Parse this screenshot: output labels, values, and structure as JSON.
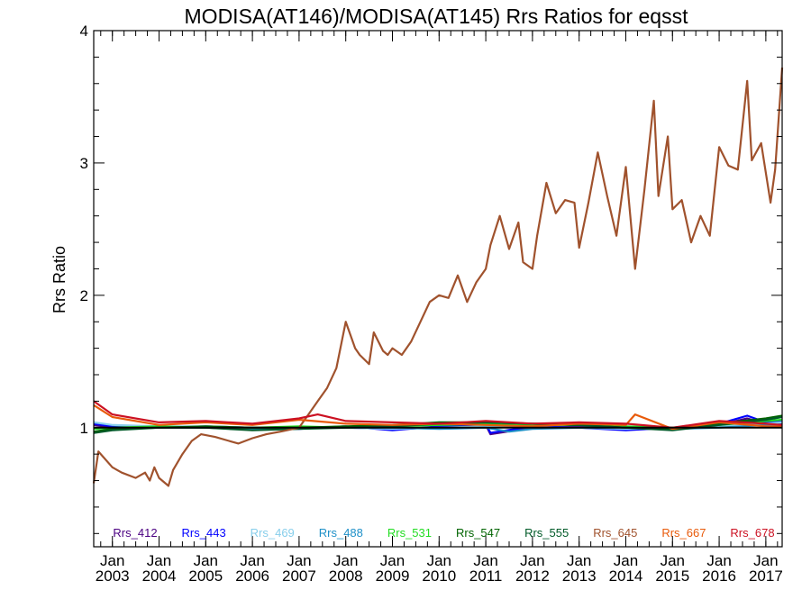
{
  "chart_data": {
    "type": "line",
    "title": "MODISA(AT146)/MODISA(AT145)  Rrs Ratios for eqsst",
    "xlabel": "",
    "ylabel": "Rrs Ratio",
    "xlim": [
      2002.6,
      2017.35
    ],
    "ylim": [
      0.1,
      4.0
    ],
    "yticks": [
      1,
      2,
      3,
      4
    ],
    "xticks": [
      {
        "month": "Jan",
        "year": "2003",
        "x": 2003.0
      },
      {
        "month": "Jan",
        "year": "2004",
        "x": 2004.0
      },
      {
        "month": "Jan",
        "year": "2005",
        "x": 2005.0
      },
      {
        "month": "Jan",
        "year": "2006",
        "x": 2006.0
      },
      {
        "month": "Jan",
        "year": "2007",
        "x": 2007.0
      },
      {
        "month": "Jan",
        "year": "2008",
        "x": 2008.0
      },
      {
        "month": "Jan",
        "year": "2009",
        "x": 2009.0
      },
      {
        "month": "Jan",
        "year": "2010",
        "x": 2010.0
      },
      {
        "month": "Jan",
        "year": "2011",
        "x": 2011.0
      },
      {
        "month": "Jan",
        "year": "2012",
        "x": 2012.0
      },
      {
        "month": "Jan",
        "year": "2013",
        "x": 2013.0
      },
      {
        "month": "Jan",
        "year": "2014",
        "x": 2014.0
      },
      {
        "month": "Jan",
        "year": "2015",
        "x": 2015.0
      },
      {
        "month": "Jan",
        "year": "2016",
        "x": 2016.0
      },
      {
        "month": "Jan",
        "year": "2017",
        "x": 2017.0
      }
    ],
    "grid": false,
    "legend_position": "bottom",
    "series": [
      {
        "name": "Rrs_412",
        "color": "#4b0082",
        "x": [
          2002.6,
          2003.0,
          2004.0,
          2005.0,
          2006.0,
          2007.0,
          2008.0,
          2009.0,
          2010.0,
          2011.0,
          2011.1,
          2012.0,
          2013.0,
          2014.0,
          2015.0,
          2016.0,
          2016.6,
          2017.0,
          2017.35
        ],
        "y": [
          1.02,
          1.0,
          1.01,
          1.0,
          0.99,
          1.0,
          1.0,
          0.99,
          1.0,
          1.02,
          0.95,
          1.0,
          1.01,
          1.0,
          0.99,
          1.02,
          1.07,
          1.03,
          1.03
        ]
      },
      {
        "name": "Rrs_443",
        "color": "#0000ff",
        "x": [
          2002.6,
          2003.0,
          2004.0,
          2005.0,
          2006.0,
          2007.0,
          2008.0,
          2009.0,
          2010.0,
          2011.0,
          2011.1,
          2012.0,
          2013.0,
          2014.0,
          2015.0,
          2016.0,
          2016.6,
          2017.0,
          2017.35
        ],
        "y": [
          1.03,
          1.01,
          1.0,
          1.01,
          1.0,
          0.99,
          1.01,
          0.98,
          1.01,
          1.03,
          0.96,
          1.01,
          1.0,
          0.98,
          1.0,
          1.03,
          1.09,
          1.04,
          1.05
        ]
      },
      {
        "name": "Rrs_469",
        "color": "#87ceeb",
        "x": [
          2002.6,
          2003.0,
          2004.0,
          2005.0,
          2006.0,
          2007.0,
          2008.0,
          2009.0,
          2010.0,
          2011.0,
          2012.0,
          2013.0,
          2014.0,
          2015.0,
          2016.0,
          2017.0,
          2017.35
        ],
        "y": [
          1.04,
          1.02,
          1.01,
          1.01,
          1.0,
          1.0,
          1.0,
          0.99,
          1.0,
          1.01,
          1.0,
          1.0,
          0.99,
          1.0,
          1.01,
          1.03,
          1.04
        ]
      },
      {
        "name": "Rrs_488",
        "color": "#1e90c8",
        "x": [
          2002.6,
          2003.0,
          2004.0,
          2005.0,
          2006.0,
          2007.0,
          2008.0,
          2009.0,
          2010.0,
          2011.0,
          2011.5,
          2012.0,
          2013.0,
          2014.0,
          2015.0,
          2016.0,
          2017.0,
          2017.35
        ],
        "y": [
          1.0,
          0.99,
          1.0,
          1.0,
          0.99,
          1.0,
          1.0,
          1.0,
          0.99,
          1.0,
          0.97,
          0.99,
          1.0,
          1.0,
          0.99,
          1.0,
          1.02,
          1.02
        ]
      },
      {
        "name": "Rrs_531",
        "color": "#22dd22",
        "x": [
          2002.6,
          2003.0,
          2004.0,
          2005.0,
          2006.0,
          2007.0,
          2008.0,
          2009.0,
          2010.0,
          2011.0,
          2012.0,
          2013.0,
          2014.0,
          2015.0,
          2016.0,
          2017.0,
          2017.35
        ],
        "y": [
          0.99,
          1.0,
          1.01,
          1.0,
          1.0,
          1.01,
          1.0,
          1.01,
          1.02,
          1.03,
          1.02,
          1.02,
          1.01,
          1.0,
          1.02,
          1.05,
          1.06
        ]
      },
      {
        "name": "Rrs_547",
        "color": "#006400",
        "x": [
          2002.6,
          2003.0,
          2004.0,
          2005.0,
          2006.0,
          2007.0,
          2008.0,
          2009.0,
          2010.0,
          2011.0,
          2012.0,
          2013.0,
          2014.0,
          2015.0,
          2016.0,
          2017.0,
          2017.35
        ],
        "y": [
          0.97,
          0.99,
          1.0,
          1.01,
          1.0,
          1.0,
          1.01,
          1.02,
          1.04,
          1.04,
          1.03,
          1.02,
          1.0,
          0.99,
          1.03,
          1.07,
          1.09
        ]
      },
      {
        "name": "Rrs_555",
        "color": "#005a28",
        "x": [
          2002.6,
          2003.0,
          2004.0,
          2005.0,
          2006.0,
          2007.0,
          2008.0,
          2009.0,
          2010.0,
          2011.0,
          2012.0,
          2013.0,
          2014.0,
          2015.0,
          2016.0,
          2017.0,
          2017.35
        ],
        "y": [
          0.96,
          0.98,
          1.0,
          1.0,
          0.98,
          0.99,
          1.0,
          1.01,
          1.03,
          1.04,
          1.03,
          1.02,
          1.0,
          0.98,
          1.02,
          1.06,
          1.08
        ]
      },
      {
        "name": "Rrs_645",
        "color": "#a0522d",
        "x": [
          2002.6,
          2002.7,
          2002.8,
          2003.0,
          2003.2,
          2003.5,
          2003.7,
          2003.8,
          2003.9,
          2004.0,
          2004.2,
          2004.3,
          2004.5,
          2004.7,
          2004.9,
          2005.2,
          2005.5,
          2005.7,
          2006.0,
          2006.3,
          2006.6,
          2007.0,
          2007.2,
          2007.4,
          2007.6,
          2007.8,
          2008.0,
          2008.2,
          2008.3,
          2008.5,
          2008.6,
          2008.8,
          2008.9,
          2009.0,
          2009.2,
          2009.4,
          2009.6,
          2009.8,
          2010.0,
          2010.2,
          2010.4,
          2010.6,
          2010.8,
          2011.0,
          2011.1,
          2011.3,
          2011.5,
          2011.7,
          2011.8,
          2012.0,
          2012.1,
          2012.3,
          2012.5,
          2012.7,
          2012.9,
          2013.0,
          2013.2,
          2013.4,
          2013.6,
          2013.8,
          2014.0,
          2014.2,
          2014.4,
          2014.6,
          2014.7,
          2014.9,
          2015.0,
          2015.2,
          2015.4,
          2015.6,
          2015.8,
          2016.0,
          2016.2,
          2016.4,
          2016.6,
          2016.7,
          2016.9,
          2017.1,
          2017.2,
          2017.35
        ],
        "y": [
          0.58,
          0.82,
          0.78,
          0.7,
          0.66,
          0.62,
          0.66,
          0.6,
          0.7,
          0.62,
          0.56,
          0.68,
          0.8,
          0.9,
          0.95,
          0.93,
          0.9,
          0.88,
          0.92,
          0.95,
          0.97,
          1.0,
          1.1,
          1.2,
          1.3,
          1.45,
          1.8,
          1.6,
          1.55,
          1.48,
          1.72,
          1.58,
          1.55,
          1.6,
          1.55,
          1.65,
          1.8,
          1.95,
          2.0,
          1.98,
          2.15,
          1.95,
          2.1,
          2.2,
          2.38,
          2.6,
          2.35,
          2.55,
          2.25,
          2.2,
          2.45,
          2.85,
          2.62,
          2.72,
          2.7,
          2.36,
          2.7,
          3.08,
          2.75,
          2.45,
          2.97,
          2.2,
          2.8,
          3.47,
          2.75,
          3.2,
          2.65,
          2.72,
          2.4,
          2.6,
          2.45,
          3.12,
          2.98,
          2.95,
          3.62,
          3.02,
          3.15,
          2.7,
          2.95,
          3.72
        ]
      },
      {
        "name": "Rrs_667",
        "color": "#e85a0a",
        "x": [
          2002.6,
          2003.0,
          2004.0,
          2005.0,
          2006.0,
          2007.0,
          2008.0,
          2009.0,
          2010.0,
          2011.0,
          2012.0,
          2013.0,
          2014.0,
          2014.2,
          2015.0,
          2016.0,
          2017.0,
          2017.35
        ],
        "y": [
          1.17,
          1.08,
          1.02,
          1.04,
          1.02,
          1.06,
          1.03,
          1.02,
          1.03,
          1.02,
          1.01,
          1.03,
          1.02,
          1.1,
          0.99,
          1.04,
          1.01,
          1.01
        ]
      },
      {
        "name": "Rrs_678",
        "color": "#cc1122",
        "x": [
          2002.6,
          2003.0,
          2004.0,
          2005.0,
          2006.0,
          2007.0,
          2007.4,
          2008.0,
          2009.0,
          2010.0,
          2011.0,
          2012.0,
          2013.0,
          2014.0,
          2015.0,
          2016.0,
          2017.0,
          2017.35
        ],
        "y": [
          1.2,
          1.1,
          1.04,
          1.05,
          1.03,
          1.07,
          1.1,
          1.05,
          1.04,
          1.03,
          1.05,
          1.03,
          1.04,
          1.03,
          1.0,
          1.05,
          1.03,
          1.02
        ]
      }
    ]
  }
}
